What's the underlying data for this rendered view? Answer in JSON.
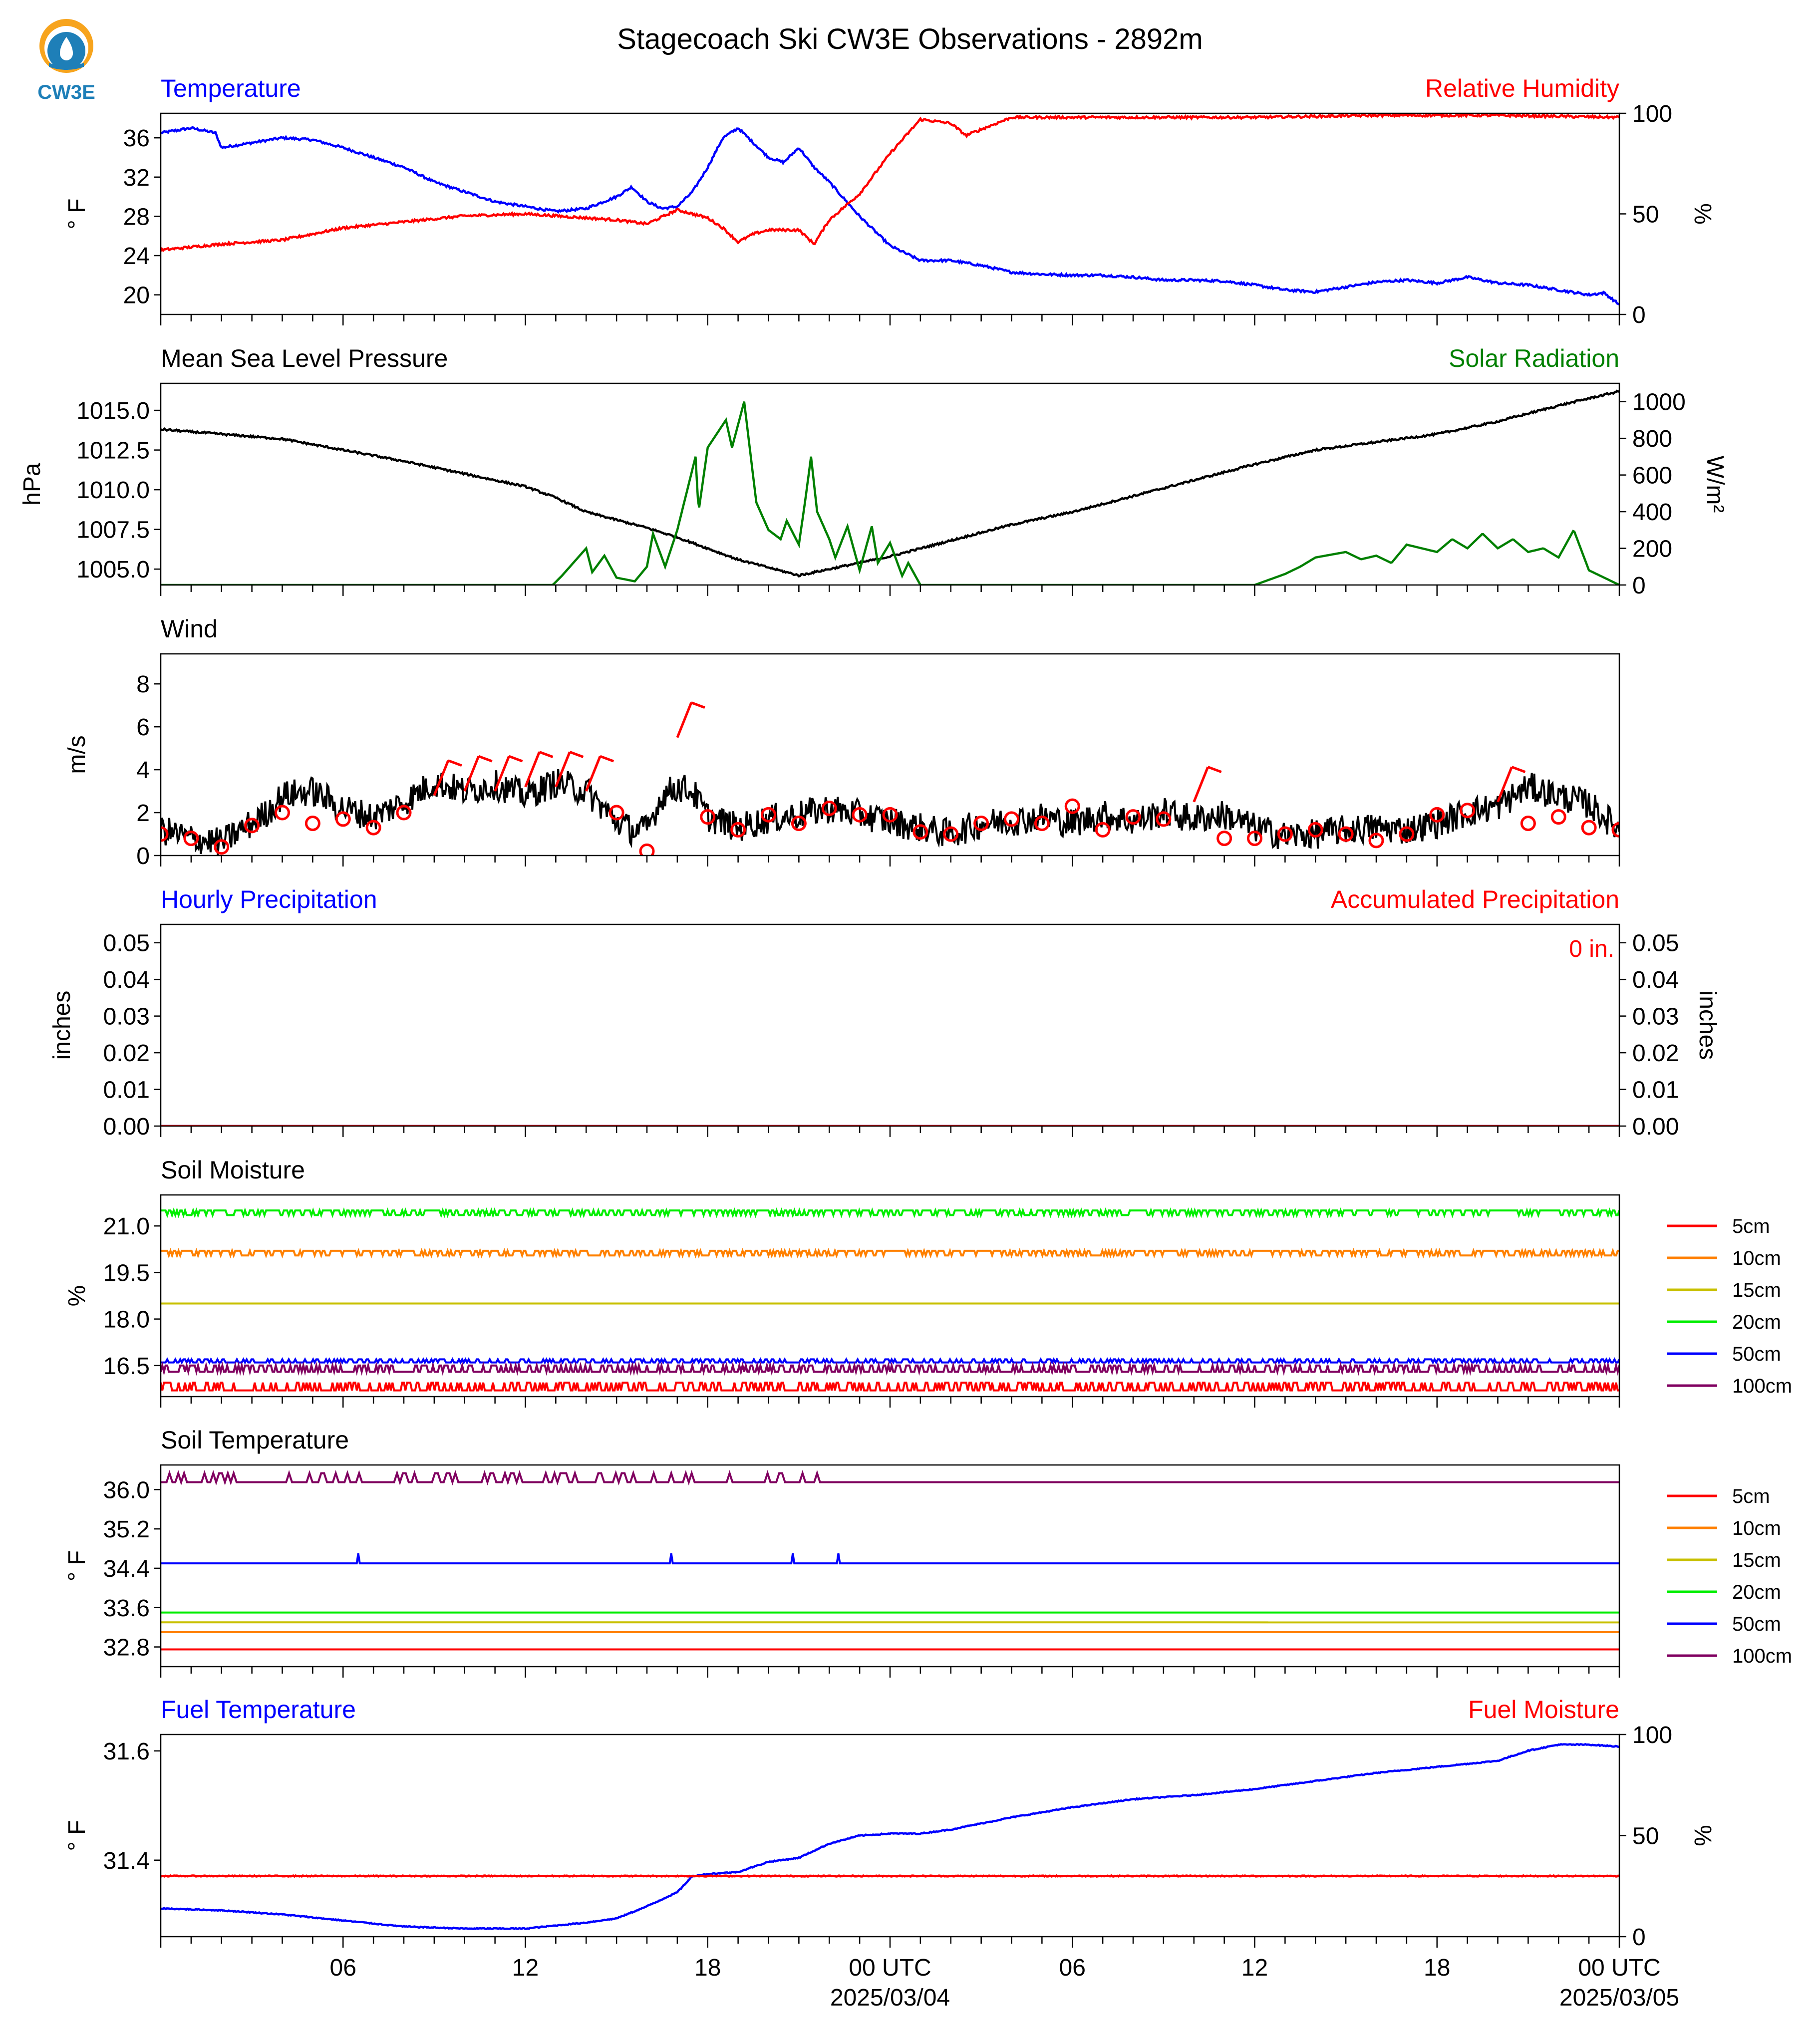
{
  "title": "Stagecoach Ski CW3E Observations - 2892m",
  "logo": {
    "text": "CW3E",
    "icon": "cw3e-logo-icon"
  },
  "colors": {
    "blue": "#0000ff",
    "red": "#ff0000",
    "green": "#008000",
    "black": "#000000",
    "orange": "#ff8000",
    "olive": "#c8c000",
    "lime": "#00ee00",
    "purple": "#800060"
  },
  "x_axis": {
    "tick_labels": [
      "06",
      "12",
      "18",
      "00 UTC",
      "06",
      "12",
      "18",
      "00 UTC"
    ],
    "date_labels": [
      "2025/03/04",
      "2025/03/05"
    ]
  },
  "chart_data": [
    {
      "type": "line",
      "left_title": "Temperature",
      "right_title": "Relative Humidity",
      "ylabel": "° F",
      "ylabel_right": "%",
      "ylim": [
        18,
        38.5
      ],
      "yticks": [
        "36",
        "32",
        "28",
        "24",
        "20"
      ],
      "ylim_right": [
        0,
        100
      ],
      "yticks_right": [
        "100",
        "50",
        "0"
      ],
      "series": [
        {
          "color": "#0000ff",
          "axis": "left",
          "x": [
            0,
            1,
            1.8,
            2,
            3,
            4,
            5,
            6,
            7,
            8,
            9,
            10,
            11,
            12,
            13,
            14,
            15,
            15.5,
            16,
            16.5,
            17,
            17.5,
            18,
            18.5,
            19,
            19.5,
            20,
            20.5,
            21,
            21.5,
            22,
            23,
            24,
            25,
            26,
            27,
            28,
            29,
            30,
            31,
            32,
            33,
            34,
            35,
            36,
            37,
            38,
            39,
            40,
            41,
            42,
            43,
            44,
            45,
            46,
            47,
            47.5,
            48
          ],
          "y": [
            36.5,
            37,
            36.5,
            35,
            35.5,
            36,
            35.8,
            35,
            34,
            33,
            31.5,
            30.5,
            29.5,
            29,
            28.5,
            28.8,
            30,
            31,
            29.5,
            28.8,
            29,
            30.5,
            33,
            36,
            37,
            35.5,
            34,
            33.5,
            35,
            33,
            31.5,
            28,
            25,
            23.5,
            23.5,
            23,
            22.3,
            22.1,
            22,
            22,
            21.8,
            21.5,
            21.5,
            21.4,
            21,
            20.5,
            20.3,
            20.8,
            21.3,
            21.5,
            21.2,
            21.8,
            21.2,
            21,
            20.5,
            20,
            20.2,
            19
          ]
        },
        {
          "color": "#ff0000",
          "axis": "right",
          "x": [
            0,
            2,
            4,
            6,
            8,
            10,
            12,
            14,
            15,
            16,
            17,
            18,
            18.5,
            19,
            19.5,
            20,
            21,
            21.5,
            22,
            23,
            24,
            25,
            26,
            26.5,
            27,
            28,
            30,
            36,
            40,
            44,
            48
          ],
          "y": [
            32,
            35,
            37,
            43,
            46,
            49,
            50,
            48,
            47,
            45,
            52,
            48,
            43,
            36,
            40,
            42,
            42,
            35,
            47,
            60,
            80,
            97,
            95,
            89,
            92,
            98,
            98,
            98,
            99,
            99,
            98
          ]
        }
      ]
    },
    {
      "type": "line",
      "left_title": "Mean Sea Level Pressure",
      "right_title": "Solar Radiation",
      "ylabel": "hPa",
      "ylabel_right": "W/m²",
      "ylim": [
        1004,
        1016.7
      ],
      "yticks": [
        "1015.0",
        "1012.5",
        "1010.0",
        "1007.5",
        "1005.0"
      ],
      "ylim_right": [
        0,
        1100
      ],
      "yticks_right": [
        "1000",
        "800",
        "600",
        "400",
        "200",
        "0"
      ],
      "series": [
        {
          "color": "#000000",
          "axis": "left",
          "x": [
            0,
            2,
            4,
            6,
            8,
            10,
            12,
            13,
            14,
            15,
            16,
            17,
            18,
            19,
            20,
            21,
            22,
            24,
            26,
            28,
            30,
            32,
            34,
            36,
            38,
            40,
            42,
            44,
            46,
            48
          ],
          "y": [
            1013.8,
            1013.5,
            1013.2,
            1012.5,
            1011.8,
            1011.0,
            1010.2,
            1009.5,
            1008.6,
            1008.1,
            1007.6,
            1007.0,
            1006.3,
            1005.6,
            1005.1,
            1004.6,
            1005.0,
            1005.8,
            1006.8,
            1007.8,
            1008.6,
            1009.6,
            1010.6,
            1011.6,
            1012.5,
            1013.0,
            1013.5,
            1014.3,
            1015.3,
            1016.2
          ]
        },
        {
          "color": "#008000",
          "axis": "right",
          "x": [
            0,
            12.9,
            13.2,
            14,
            14.2,
            14.6,
            15,
            15.6,
            16,
            16.2,
            16.6,
            17,
            17.6,
            17.7,
            18,
            18.2,
            18.6,
            18.8,
            19.2,
            19.6,
            20,
            20.4,
            20.6,
            21,
            21.2,
            21.4,
            21.6,
            22,
            22.2,
            22.6,
            23,
            23.4,
            23.6,
            24,
            24.4,
            24.6,
            25,
            26,
            36,
            37,
            37.5,
            38,
            39,
            39.5,
            40,
            40.5,
            41,
            42,
            42.5,
            43,
            43.5,
            44,
            44.5,
            45,
            45.5,
            46,
            46.5,
            47,
            48
          ],
          "y": [
            0,
            0,
            50,
            200,
            70,
            160,
            40,
            20,
            100,
            280,
            100,
            300,
            700,
            400,
            750,
            800,
            900,
            750,
            1000,
            450,
            300,
            250,
            350,
            220,
            450,
            700,
            400,
            250,
            150,
            320,
            80,
            320,
            120,
            230,
            50,
            120,
            0,
            0,
            0,
            60,
            100,
            150,
            180,
            140,
            160,
            120,
            220,
            180,
            250,
            200,
            280,
            200,
            250,
            180,
            200,
            150,
            300,
            80,
            0
          ]
        }
      ]
    },
    {
      "type": "line",
      "left_title": "Wind",
      "ylabel": "m/s",
      "ylim": [
        0,
        9.4
      ],
      "yticks": [
        "8",
        "6",
        "4",
        "2",
        "0"
      ],
      "series": [
        {
          "color": "#000000",
          "axis": "left",
          "x": [
            0,
            1,
            2,
            3,
            3.5,
            4,
            5,
            6,
            7,
            8,
            9,
            10,
            11,
            12,
            13,
            14,
            15,
            15.5,
            16,
            16.5,
            17,
            17.5,
            18,
            19,
            20,
            21,
            22,
            23,
            24,
            25,
            26,
            27,
            28,
            29,
            30,
            31,
            32,
            33,
            34,
            35,
            36,
            37,
            38,
            39,
            40,
            41,
            42,
            43,
            44,
            45,
            46,
            47,
            48
          ],
          "y": [
            1.2,
            0.8,
            0.6,
            1.5,
            2.0,
            2.8,
            3.0,
            2.2,
            1.8,
            2.5,
            3.4,
            3.0,
            3.3,
            2.8,
            3.4,
            3.0,
            1.6,
            1.2,
            1.2,
            2.8,
            3.2,
            3.0,
            1.8,
            1.3,
            1.7,
            1.9,
            2.2,
            1.9,
            1.6,
            1.3,
            1.0,
            1.5,
            1.6,
            1.8,
            1.5,
            1.9,
            1.6,
            2.0,
            1.7,
            1.9,
            1.3,
            0.9,
            1.0,
            1.2,
            1.3,
            1.2,
            1.5,
            2.0,
            2.3,
            3.2,
            2.8,
            2.4,
            1.2
          ]
        }
      ],
      "barbs": {
        "color": "#ff0000",
        "x": [
          0,
          1,
          2,
          3,
          4,
          5,
          6,
          7,
          8,
          9,
          10,
          11,
          12,
          13,
          14,
          15,
          16,
          17,
          18,
          19,
          20,
          21,
          22,
          23,
          24,
          25,
          26,
          27,
          28,
          29,
          30,
          31,
          32,
          33,
          34,
          35,
          36,
          37,
          38,
          39,
          40,
          41,
          42,
          43,
          44,
          45,
          46,
          47,
          48
        ],
        "speed": [
          1.0,
          0.8,
          0.4,
          1.4,
          2.0,
          1.5,
          1.7,
          1.3,
          2.0,
          2.8,
          3.0,
          3.0,
          3.2,
          3.2,
          3.0,
          2.0,
          0.2,
          5.5,
          1.8,
          1.2,
          1.9,
          1.5,
          2.2,
          1.9,
          1.9,
          1.1,
          1.0,
          1.5,
          1.7,
          1.5,
          2.3,
          1.2,
          1.8,
          1.7,
          2.5,
          0.8,
          0.8,
          1.0,
          1.2,
          1.0,
          0.7,
          1.0,
          1.9,
          2.1,
          2.5,
          1.5,
          1.8,
          1.3,
          1.2
        ]
      }
    },
    {
      "type": "line",
      "left_title": "Hourly Precipitation",
      "right_title": "Accumulated Precipitation",
      "ylabel": "inches",
      "ylabel_right": "inches",
      "ylim": [
        0,
        0.055
      ],
      "yticks": [
        "0.05",
        "0.04",
        "0.03",
        "0.02",
        "0.01",
        "0.00"
      ],
      "ylim_right": [
        0,
        0.055
      ],
      "yticks_right": [
        "0.05",
        "0.04",
        "0.03",
        "0.02",
        "0.01",
        "0.00"
      ],
      "annotation": "0 in.",
      "series": [
        {
          "color": "#0000ff",
          "axis": "left",
          "x": [
            0,
            48
          ],
          "y": [
            0,
            0
          ]
        },
        {
          "color": "#ff0000",
          "axis": "right",
          "x": [
            0,
            48
          ],
          "y": [
            0,
            0
          ]
        }
      ]
    },
    {
      "type": "line",
      "left_title": "Soil Moisture",
      "ylabel": "%",
      "ylim": [
        15.5,
        22.0
      ],
      "yticks": [
        "21.0",
        "19.5",
        "18.0",
        "16.5"
      ],
      "legend": [
        "5cm",
        "10cm",
        "15cm",
        "20cm",
        "50cm",
        "100cm"
      ],
      "legend_colors": [
        "#ff0000",
        "#ff8000",
        "#c8c000",
        "#00ee00",
        "#0000ff",
        "#800060"
      ],
      "series": [
        {
          "name": "5cm",
          "color": "#ff0000",
          "level": 15.7,
          "noise": 0.25
        },
        {
          "name": "10cm",
          "color": "#ff8000",
          "level": 20.2,
          "noise": 0.15
        },
        {
          "name": "15cm",
          "color": "#c8c000",
          "level": 18.5,
          "noise": 0
        },
        {
          "name": "20cm",
          "color": "#00ee00",
          "level": 21.5,
          "noise": 0.15
        },
        {
          "name": "50cm",
          "color": "#0000ff",
          "level": 16.6,
          "noise": 0.1
        },
        {
          "name": "100cm",
          "color": "#800060",
          "level": 16.3,
          "noise": 0.2
        }
      ]
    },
    {
      "type": "line",
      "left_title": "Soil Temperature",
      "ylabel": "° F",
      "ylim": [
        32.4,
        36.5
      ],
      "yticks": [
        "36.0",
        "35.2",
        "34.4",
        "33.6",
        "32.8"
      ],
      "legend": [
        "5cm",
        "10cm",
        "15cm",
        "20cm",
        "50cm",
        "100cm"
      ],
      "legend_colors": [
        "#ff0000",
        "#ff8000",
        "#c8c000",
        "#00ee00",
        "#0000ff",
        "#800060"
      ],
      "series": [
        {
          "name": "5cm",
          "color": "#ff0000",
          "level": 32.75
        },
        {
          "name": "10cm",
          "color": "#ff8000",
          "level": 33.1
        },
        {
          "name": "15cm",
          "color": "#c8c000",
          "level": 33.3
        },
        {
          "name": "20cm",
          "color": "#00ee00",
          "level": 33.5
        },
        {
          "name": "50cm",
          "color": "#0000ff",
          "level": 34.5
        },
        {
          "name": "100cm",
          "color": "#800060",
          "level": 36.15
        }
      ]
    },
    {
      "type": "line",
      "left_title": "Fuel Temperature",
      "right_title": "Fuel Moisture",
      "ylabel": "° F",
      "ylabel_right": "%",
      "ylim": [
        31.26,
        31.63
      ],
      "yticks": [
        "31.6",
        "31.4"
      ],
      "ylim_right": [
        0,
        100
      ],
      "yticks_right": [
        "100",
        "50",
        "0"
      ],
      "series": [
        {
          "color": "#0000ff",
          "axis": "right",
          "x": [
            0,
            2,
            4,
            6,
            8,
            10,
            12,
            14,
            15,
            16,
            17,
            17.5,
            18,
            19,
            20,
            21,
            22,
            23,
            24,
            25,
            26,
            28,
            30,
            32,
            34,
            36,
            38,
            40,
            42,
            44,
            45,
            46,
            47,
            48
          ],
          "y": [
            14,
            13,
            11,
            8,
            5,
            4,
            4,
            7,
            9,
            15,
            22,
            30,
            31,
            32,
            37,
            39,
            46,
            50,
            51,
            51,
            53,
            59,
            64,
            68,
            70,
            73,
            77,
            81,
            84,
            87,
            92,
            95,
            95,
            94
          ]
        },
        {
          "color": "#ff0000",
          "axis": "right",
          "x": [
            0,
            48
          ],
          "y": [
            30,
            30
          ]
        }
      ]
    }
  ]
}
